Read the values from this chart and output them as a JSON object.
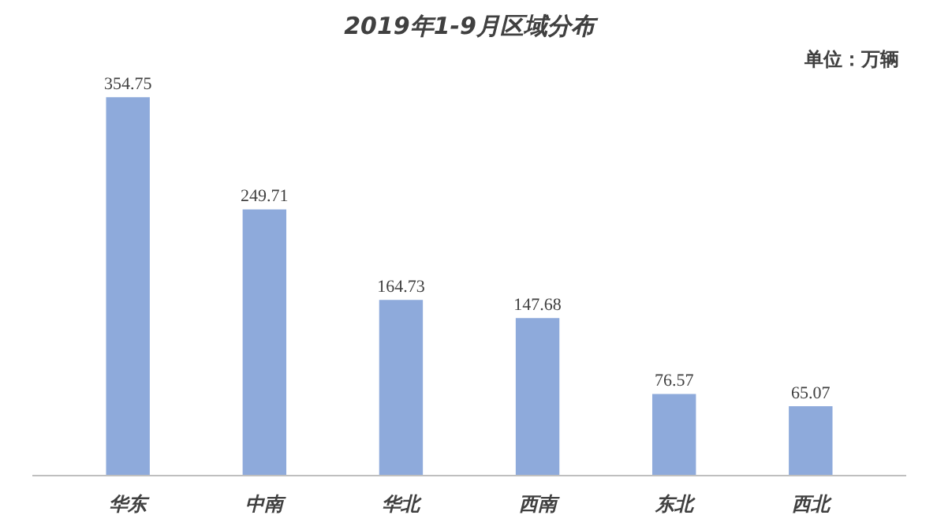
{
  "chart_data": {
    "type": "bar",
    "title": "2019年1-9月区域分布",
    "annotations": [
      "单位：万辆"
    ],
    "categories": [
      "华东",
      "中南",
      "华北",
      "西南",
      "东北",
      "西北"
    ],
    "values": [
      354.75,
      249.71,
      164.73,
      147.68,
      76.57,
      65.07
    ],
    "color": "#8eaadb",
    "data_labels": true,
    "grid": false
  }
}
